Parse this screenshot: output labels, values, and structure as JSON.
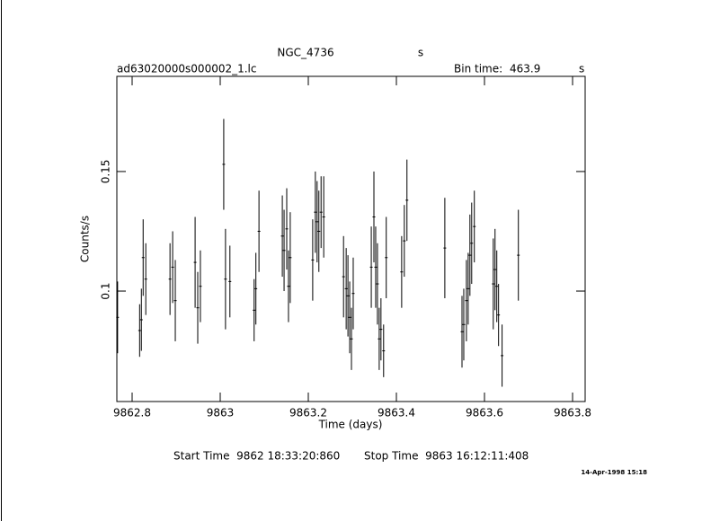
{
  "chart_data": {
    "type": "errorbar",
    "title": "NGC_4736",
    "title_unit": "s",
    "file_name": "ad63020000s000002_1.lc",
    "bin_time_label": "Bin time:",
    "bin_time": 463.9,
    "bin_time_unit": "s",
    "x_label": "Time (days)",
    "y_label": "Counts/s",
    "start_time": "Start Time  9862 18:33:20:860",
    "stop_time": "Stop Time  9863 16:12:11:408",
    "timestamp": "14-Apr-1998 15:18",
    "color": "#000000",
    "xlim": [
      9862.7653,
      9863.8286
    ],
    "xticks": [
      9862.8,
      9863,
      9863.2,
      9863.4,
      9863.6,
      9863.8
    ],
    "ylim": [
      0.0538,
      0.1898
    ],
    "yticks": [
      0.1,
      0.15
    ],
    "x": [
      9862.767,
      9862.817,
      9862.821,
      9862.825,
      9862.831,
      9862.886,
      9862.892,
      9862.898,
      9862.943,
      9862.949,
      9862.955,
      9863.008,
      9863.012,
      9863.022,
      9863.077,
      9863.081,
      9863.088,
      9863.141,
      9863.145,
      9863.151,
      9863.155,
      9863.159,
      9863.21,
      9863.216,
      9863.22,
      9863.224,
      9863.229,
      9863.235,
      9863.28,
      9863.286,
      9863.29,
      9863.294,
      9863.298,
      9863.302,
      9863.343,
      9863.349,
      9863.353,
      9863.357,
      9863.361,
      9863.365,
      9863.371,
      9863.377,
      9863.412,
      9863.418,
      9863.424,
      9863.51,
      9863.549,
      9863.553,
      9863.559,
      9863.563,
      9863.567,
      9863.571,
      9863.577,
      9863.62,
      9863.624,
      9863.628,
      9863.632,
      9863.64,
      9863.677
    ],
    "values": [
      0.089,
      0.0835,
      0.088,
      0.114,
      0.105,
      0.105,
      0.11,
      0.096,
      0.112,
      0.093,
      0.102,
      0.153,
      0.105,
      0.104,
      0.092,
      0.101,
      0.125,
      0.123,
      0.117,
      0.126,
      0.102,
      0.114,
      0.113,
      0.133,
      0.129,
      0.125,
      0.133,
      0.131,
      0.106,
      0.101,
      0.098,
      0.089,
      0.08,
      0.099,
      0.11,
      0.131,
      0.11,
      0.103,
      0.08,
      0.084,
      0.075,
      0.114,
      0.108,
      0.121,
      0.138,
      0.118,
      0.083,
      0.086,
      0.096,
      0.101,
      0.115,
      0.12,
      0.127,
      0.103,
      0.109,
      0.102,
      0.09,
      0.073,
      0.115
    ],
    "errors": [
      0.015,
      0.011,
      0.013,
      0.016,
      0.015,
      0.015,
      0.015,
      0.017,
      0.019,
      0.015,
      0.015,
      0.019,
      0.021,
      0.015,
      0.013,
      0.015,
      0.017,
      0.017,
      0.017,
      0.017,
      0.015,
      0.019,
      0.017,
      0.017,
      0.017,
      0.017,
      0.015,
      0.017,
      0.017,
      0.017,
      0.017,
      0.015,
      0.013,
      0.015,
      0.017,
      0.019,
      0.017,
      0.017,
      0.013,
      0.013,
      0.011,
      0.017,
      0.015,
      0.015,
      0.017,
      0.021,
      0.015,
      0.015,
      0.017,
      0.015,
      0.017,
      0.017,
      0.015,
      0.019,
      0.017,
      0.015,
      0.013,
      0.013,
      0.019
    ]
  }
}
